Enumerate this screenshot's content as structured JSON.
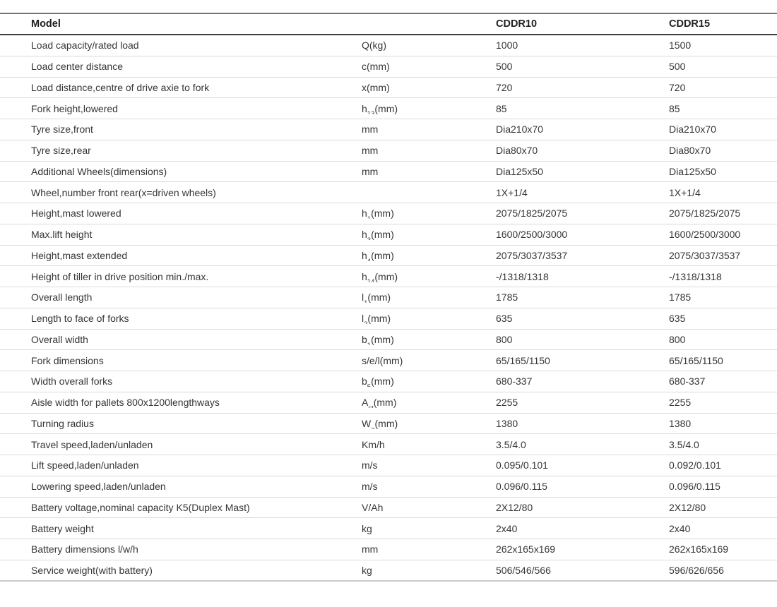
{
  "table": {
    "header": {
      "model_label": "Model",
      "unit_label": "",
      "columns": [
        "CDDR10",
        "CDDR15"
      ]
    },
    "rows": [
      {
        "label": "Load capacity/rated load",
        "unit": {
          "pre": "Q(kg)",
          "sub": "",
          "post": ""
        },
        "cddr10": "1000",
        "cddr15": "1500"
      },
      {
        "label": "Load center distance",
        "unit": {
          "pre": "c(mm)",
          "sub": "",
          "post": ""
        },
        "cddr10": "500",
        "cddr15": "500"
      },
      {
        "label": "Load distance,centre of drive axie to fork",
        "unit": {
          "pre": "x(mm)",
          "sub": "",
          "post": ""
        },
        "cddr10": "720",
        "cddr15": "720"
      },
      {
        "label": "Fork height,lowered",
        "unit": {
          "pre": "h",
          "sub": "13",
          "post": "(mm)"
        },
        "cddr10": "85",
        "cddr15": "85"
      },
      {
        "label": "Tyre size,front",
        "unit": {
          "pre": "mm",
          "sub": "",
          "post": ""
        },
        "cddr10": "Dia210x70",
        "cddr15": "Dia210x70"
      },
      {
        "label": "Tyre size,rear",
        "unit": {
          "pre": "mm",
          "sub": "",
          "post": ""
        },
        "cddr10": "Dia80x70",
        "cddr15": "Dia80x70"
      },
      {
        "label": "Additional Wheels(dimensions)",
        "unit": {
          "pre": "mm",
          "sub": "",
          "post": ""
        },
        "cddr10": "Dia125x50",
        "cddr15": "Dia125x50"
      },
      {
        "label": "Wheel,number front rear(x=driven wheels)",
        "unit": {
          "pre": "",
          "sub": "",
          "post": ""
        },
        "cddr10": "1X+1/4",
        "cddr15": "1X+1/4"
      },
      {
        "label": "Height,mast lowered",
        "unit": {
          "pre": "h",
          "sub": "1",
          "post": "(mm)"
        },
        "cddr10": "2075/1825/2075",
        "cddr15": "2075/1825/2075"
      },
      {
        "label": "Max.lift height",
        "unit": {
          "pre": "h",
          "sub": "3",
          "post": "(mm)"
        },
        "cddr10": "1600/2500/3000",
        "cddr15": "1600/2500/3000"
      },
      {
        "label": "Height,mast extended",
        "unit": {
          "pre": "h",
          "sub": "4",
          "post": "(mm)"
        },
        "cddr10": "2075/3037/3537",
        "cddr15": "2075/3037/3537"
      },
      {
        "label": "Height of tiller in drive position min./max.",
        "unit": {
          "pre": "h",
          "sub": "14",
          "post": "(mm)"
        },
        "cddr10": "-/1318/1318",
        "cddr15": "-/1318/1318"
      },
      {
        "label": "Overall length",
        "unit": {
          "pre": "l",
          "sub": "1",
          "post": "(mm)"
        },
        "cddr10": "1785",
        "cddr15": "1785"
      },
      {
        "label": "Length to face of forks",
        "unit": {
          "pre": "l",
          "sub": "2",
          "post": "(mm)"
        },
        "cddr10": "635",
        "cddr15": "635"
      },
      {
        "label": "Overall width",
        "unit": {
          "pre": "b",
          "sub": "1",
          "post": "(mm)"
        },
        "cddr10": "800",
        "cddr15": "800"
      },
      {
        "label": "Fork dimensions",
        "unit": {
          "pre": "s/e/l(mm)",
          "sub": "",
          "post": ""
        },
        "cddr10": "65/165/1150",
        "cddr15": "65/165/1150"
      },
      {
        "label": "Width overall forks",
        "unit": {
          "pre": "b",
          "sub": "5",
          "post": "(mm)"
        },
        "cddr10": "680-337",
        "cddr15": "680-337"
      },
      {
        "label": "Aisle width for pallets 800x1200lengthways",
        "unit": {
          "pre": "A",
          "sub": "st",
          "post": "(mm)"
        },
        "cddr10": "2255",
        "cddr15": "2255"
      },
      {
        "label": "Turning radius",
        "unit": {
          "pre": "W",
          "sub": "a",
          "post": "(mm)"
        },
        "cddr10": "1380",
        "cddr15": "1380"
      },
      {
        "label": "Travel speed,laden/unladen",
        "unit": {
          "pre": "Km/h",
          "sub": "",
          "post": ""
        },
        "cddr10": "3.5/4.0",
        "cddr15": "3.5/4.0"
      },
      {
        "label": "Lift speed,laden/unladen",
        "unit": {
          "pre": "m/s",
          "sub": "",
          "post": ""
        },
        "cddr10": "0.095/0.101",
        "cddr15": "0.092/0.101"
      },
      {
        "label": "Lowering speed,laden/unladen",
        "unit": {
          "pre": "m/s",
          "sub": "",
          "post": ""
        },
        "cddr10": "0.096/0.115",
        "cddr15": "0.096/0.115"
      },
      {
        "label": "Battery voltage,nominal capacity K5(Duplex Mast)",
        "unit": {
          "pre": "V/Ah",
          "sub": "",
          "post": ""
        },
        "cddr10": "2X12/80",
        "cddr15": "2X12/80"
      },
      {
        "label": "Battery weight",
        "unit": {
          "pre": "kg",
          "sub": "",
          "post": ""
        },
        "cddr10": "2x40",
        "cddr15": "2x40"
      },
      {
        "label": "Battery dimensions l/w/h",
        "unit": {
          "pre": "mm",
          "sub": "",
          "post": ""
        },
        "cddr10": "262x165x169",
        "cddr15": "262x165x169"
      },
      {
        "label": "Service weight(with battery)",
        "unit": {
          "pre": "kg",
          "sub": "",
          "post": ""
        },
        "cddr10": "506/546/566",
        "cddr15": "596/626/656"
      }
    ],
    "colors": {
      "top_border": "#7a7470",
      "header_border": "#403d3c",
      "row_separator": "#dadada",
      "bottom_border": "#cbcbcb",
      "text": "#353535"
    }
  }
}
